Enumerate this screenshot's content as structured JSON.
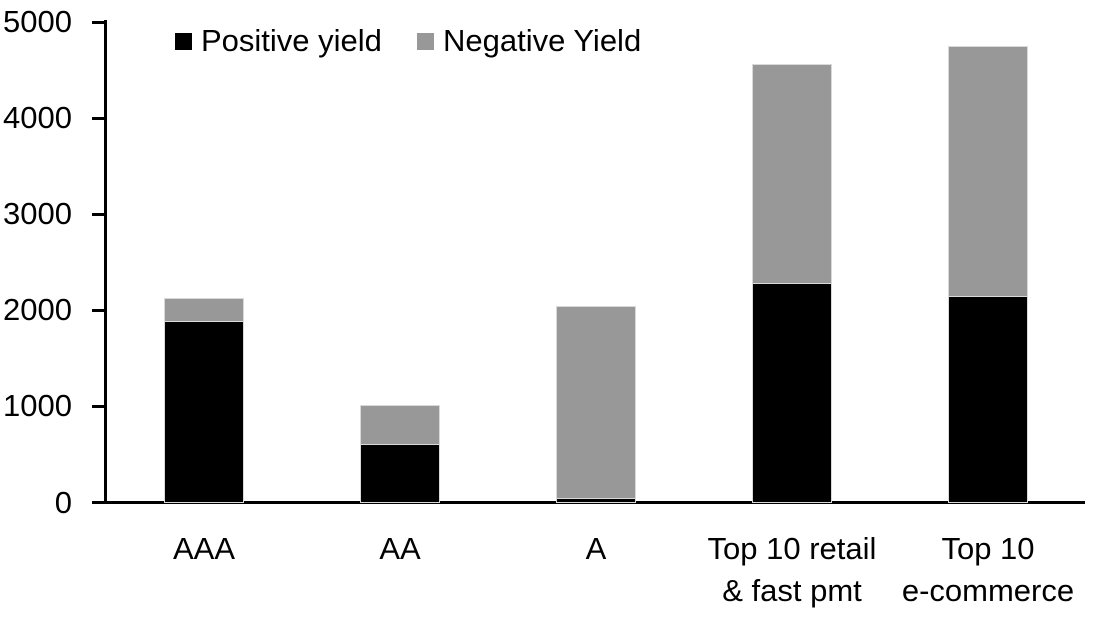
{
  "chart_data": {
    "type": "bar",
    "stacked": true,
    "title": "",
    "xlabel": "",
    "ylabel": "",
    "categories": [
      "AAA",
      "AA",
      "A",
      "Top 10 retail & fast pmt",
      "Top 10 e-commerce"
    ],
    "category_lines": [
      [
        "AAA"
      ],
      [
        "AA"
      ],
      [
        "A"
      ],
      [
        "Top 10 retail",
        "& fast pmt"
      ],
      [
        "Top 10",
        "e-commerce"
      ]
    ],
    "series": [
      {
        "name": "Positive yield",
        "color": "#000000",
        "values": [
          1880,
          600,
          45,
          2280,
          2140
        ]
      },
      {
        "name": "Negative Yield",
        "color": "#989898",
        "values": [
          230,
          400,
          1985,
          2270,
          2600
        ]
      }
    ],
    "ylim": [
      0,
      5000
    ],
    "y_ticks": [
      0,
      1000,
      2000,
      3000,
      4000,
      5000
    ],
    "grid": false,
    "legend_position": "top-left",
    "axis_color": "#000000",
    "background_color": "#ffffff"
  }
}
